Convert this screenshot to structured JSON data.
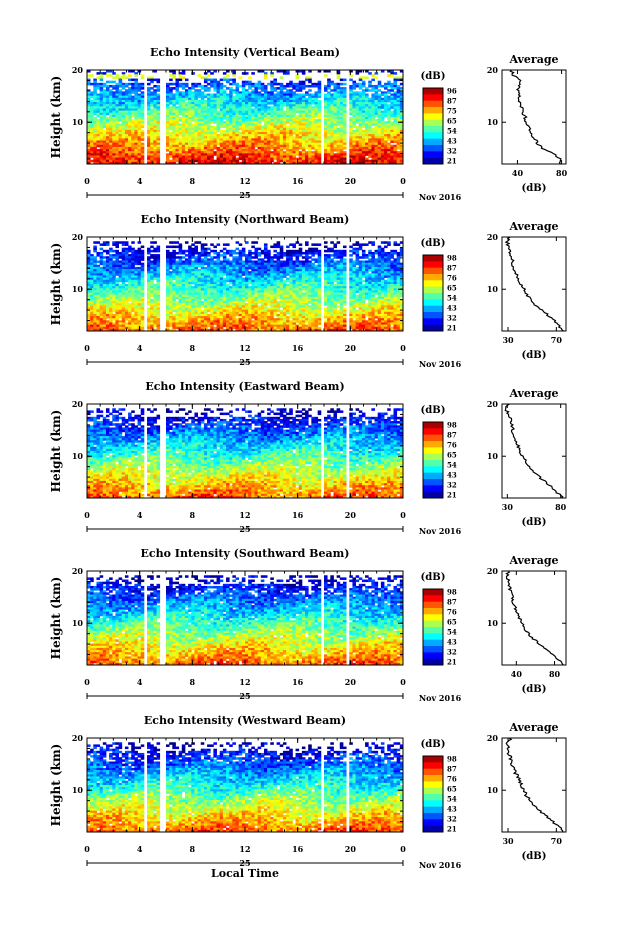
{
  "figure": {
    "shared_x_label": "Local Time",
    "date_day": "25",
    "date_month_year": "Nov 2016"
  },
  "chart_data": [
    {
      "type": "heatmap",
      "title": "Echo Intensity (Vertical Beam)",
      "ylabel": "Height (km)",
      "xticks": [
        "0",
        "4",
        "8",
        "12",
        "16",
        "20",
        "0"
      ],
      "yticks": [
        "20",
        "10"
      ],
      "xlim": [
        0,
        24
      ],
      "ylim": [
        2,
        20
      ],
      "colorbar": {
        "unit": "(dB)",
        "ticks": [
          "96",
          "87",
          "75",
          "65",
          "54",
          "43",
          "32",
          "21"
        ],
        "range": [
          21,
          96
        ]
      },
      "data_gaps_hours": [
        [
          4.2,
          4.6
        ],
        [
          5.6,
          5.9
        ],
        [
          17.8,
          18.1
        ],
        [
          19.7,
          20.0
        ]
      ],
      "profile": {
        "title": "Average",
        "xlabel": "(dB)",
        "xticks": [
          "40",
          "80"
        ],
        "xlim": [
          26,
          84
        ],
        "yticks": [
          "20",
          "10"
        ],
        "height_km": [
          2,
          3,
          4,
          5,
          6,
          7,
          8,
          9,
          10,
          11,
          12,
          13,
          14,
          15,
          16,
          17,
          18,
          19,
          20
        ],
        "values_db": [
          80,
          78,
          72,
          62,
          58,
          55,
          52,
          50,
          48,
          47,
          45,
          43,
          42,
          41,
          40,
          41,
          44,
          36,
          34
        ]
      }
    },
    {
      "type": "heatmap",
      "title": "Echo Intensity (Northward Beam)",
      "ylabel": "Height (km)",
      "xticks": [
        "0",
        "4",
        "8",
        "12",
        "16",
        "20",
        "0"
      ],
      "yticks": [
        "20",
        "10"
      ],
      "xlim": [
        0,
        24
      ],
      "ylim": [
        2,
        20
      ],
      "colorbar": {
        "unit": "(dB)",
        "ticks": [
          "98",
          "87",
          "76",
          "65",
          "54",
          "43",
          "32",
          "21"
        ],
        "range": [
          21,
          98
        ]
      },
      "data_gaps_hours": [
        [
          4.2,
          4.6
        ],
        [
          5.6,
          5.9
        ],
        [
          17.8,
          18.1
        ],
        [
          19.7,
          20.0
        ]
      ],
      "profile": {
        "title": "Average",
        "xlabel": "(dB)",
        "xticks": [
          "30",
          "70"
        ],
        "xlim": [
          25,
          78
        ],
        "yticks": [
          "20",
          "10"
        ],
        "height_km": [
          2,
          3,
          4,
          5,
          6,
          7,
          8,
          9,
          10,
          11,
          12,
          13,
          14,
          15,
          16,
          17,
          18,
          19,
          20
        ],
        "values_db": [
          76,
          72,
          68,
          63,
          58,
          53,
          49,
          46,
          43,
          41,
          39,
          37,
          35,
          34,
          33,
          32,
          31,
          29,
          31
        ]
      }
    },
    {
      "type": "heatmap",
      "title": "Echo Intensity (Eastward Beam)",
      "ylabel": "Height (km)",
      "xticks": [
        "0",
        "4",
        "8",
        "12",
        "16",
        "20",
        "0"
      ],
      "yticks": [
        "20",
        "10"
      ],
      "xlim": [
        0,
        24
      ],
      "ylim": [
        2,
        20
      ],
      "colorbar": {
        "unit": "(dB)",
        "ticks": [
          "98",
          "87",
          "76",
          "65",
          "54",
          "43",
          "32",
          "21"
        ],
        "range": [
          21,
          98
        ]
      },
      "data_gaps_hours": [
        [
          4.2,
          4.6
        ],
        [
          5.6,
          5.9
        ],
        [
          17.8,
          18.1
        ],
        [
          19.7,
          20.0
        ]
      ],
      "profile": {
        "title": "Average",
        "xlabel": "(dB)",
        "xticks": [
          "30",
          "80"
        ],
        "xlim": [
          25,
          85
        ],
        "yticks": [
          "20",
          "10"
        ],
        "height_km": [
          2,
          3,
          4,
          5,
          6,
          7,
          8,
          9,
          10,
          11,
          12,
          13,
          14,
          15,
          16,
          17,
          18,
          19,
          20
        ],
        "values_db": [
          82,
          77,
          72,
          66,
          60,
          55,
          50,
          47,
          44,
          42,
          40,
          38,
          36,
          35,
          34,
          33,
          31,
          29,
          31
        ]
      }
    },
    {
      "type": "heatmap",
      "title": "Echo Intensity (Southward Beam)",
      "ylabel": "Height (km)",
      "xticks": [
        "0",
        "4",
        "8",
        "12",
        "16",
        "20",
        "0"
      ],
      "yticks": [
        "20",
        "10"
      ],
      "xlim": [
        0,
        24
      ],
      "ylim": [
        2,
        20
      ],
      "colorbar": {
        "unit": "(dB)",
        "ticks": [
          "98",
          "87",
          "76",
          "65",
          "54",
          "43",
          "32",
          "21"
        ],
        "range": [
          21,
          98
        ]
      },
      "data_gaps_hours": [
        [
          4.2,
          4.6
        ],
        [
          5.6,
          5.9
        ],
        [
          17.8,
          18.1
        ],
        [
          19.7,
          20.0
        ]
      ],
      "profile": {
        "title": "Average",
        "xlabel": "(dB)",
        "xticks": [
          "40",
          "80"
        ],
        "xlim": [
          25,
          92
        ],
        "yticks": [
          "20",
          "10"
        ],
        "height_km": [
          2,
          3,
          4,
          5,
          6,
          7,
          8,
          9,
          10,
          11,
          12,
          13,
          14,
          15,
          16,
          17,
          18,
          19,
          20
        ],
        "values_db": [
          90,
          84,
          78,
          71,
          64,
          58,
          53,
          49,
          46,
          43,
          41,
          39,
          37,
          36,
          34,
          33,
          32,
          30,
          32
        ]
      }
    },
    {
      "type": "heatmap",
      "title": "Echo Intensity (Westward Beam)",
      "ylabel": "Height (km)",
      "xticks": [
        "0",
        "4",
        "8",
        "12",
        "16",
        "20",
        "0"
      ],
      "yticks": [
        "20",
        "10"
      ],
      "xlim": [
        0,
        24
      ],
      "ylim": [
        2,
        20
      ],
      "colorbar": {
        "unit": "(dB)",
        "ticks": [
          "98",
          "87",
          "76",
          "65",
          "54",
          "43",
          "32",
          "21"
        ],
        "range": [
          21,
          98
        ]
      },
      "data_gaps_hours": [
        [
          4.2,
          4.6
        ],
        [
          5.6,
          5.9
        ],
        [
          17.8,
          18.1
        ],
        [
          19.7,
          20.0
        ]
      ],
      "profile": {
        "title": "Average",
        "xlabel": "(dB)",
        "xticks": [
          "30",
          "70"
        ],
        "xlim": [
          25,
          78
        ],
        "yticks": [
          "20",
          "10"
        ],
        "height_km": [
          2,
          3,
          4,
          5,
          6,
          7,
          8,
          9,
          10,
          11,
          12,
          13,
          14,
          15,
          16,
          17,
          18,
          19,
          20
        ],
        "values_db": [
          76,
          72,
          67,
          62,
          57,
          52,
          48,
          45,
          43,
          41,
          39,
          37,
          35,
          33,
          32,
          31,
          30,
          29,
          32
        ]
      }
    }
  ]
}
